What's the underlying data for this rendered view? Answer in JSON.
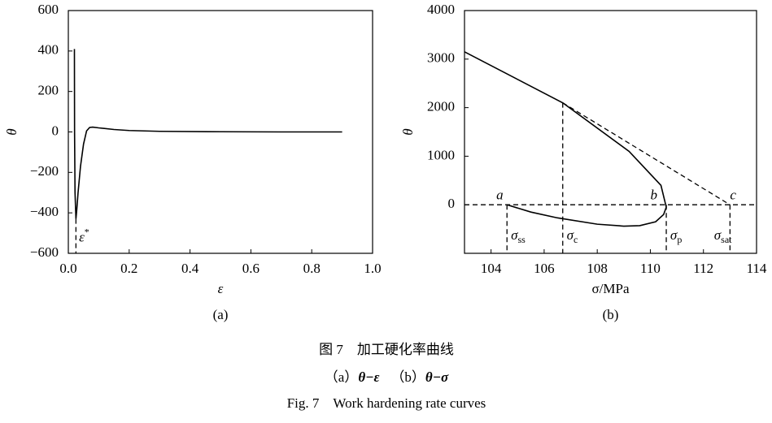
{
  "chart_data": [
    {
      "type": "line",
      "panel": "(a)",
      "x_label": "ε",
      "y_label": "θ",
      "xlim": [
        0,
        1
      ],
      "ylim": [
        -600,
        600
      ],
      "xticks": [
        {
          "value": 0,
          "label": "0.0"
        },
        {
          "value": 0.2,
          "label": "0.2"
        },
        {
          "value": 0.4,
          "label": "0.4"
        },
        {
          "value": 0.6,
          "label": "0.6"
        },
        {
          "value": 0.8,
          "label": "0.8"
        },
        {
          "value": 1,
          "label": "1.0"
        }
      ],
      "yticks": [
        {
          "value": -600,
          "label": "−600"
        },
        {
          "value": -400,
          "label": "−400"
        },
        {
          "value": -200,
          "label": "−200"
        },
        0,
        200,
        400,
        600
      ],
      "series": [
        {
          "color": "#000000",
          "x": [
            0.02,
            0.0205,
            0.022,
            0.025,
            0.028,
            0.032,
            0.04,
            0.05,
            0.06,
            0.07,
            0.08,
            0.1,
            0.15,
            0.2,
            0.3,
            0.5,
            0.7,
            0.9
          ],
          "values": [
            410,
            0,
            -300,
            -430,
            -380,
            -300,
            -170,
            -60,
            5,
            22,
            24,
            20,
            12,
            7,
            3,
            1,
            0,
            0
          ]
        }
      ],
      "guides": [
        {
          "x": [
            0.025,
            0.025
          ],
          "y": [
            -430,
            -600
          ]
        }
      ],
      "labels": [
        {
          "text": "ε",
          "sup": "*",
          "x": 0.035,
          "y": -525
        }
      ]
    },
    {
      "type": "line",
      "panel": "(b)",
      "x_label": "σ/MPa",
      "y_label": "θ",
      "xlim": [
        103,
        114
      ],
      "ylim": [
        -1000,
        4000
      ],
      "xticks": [
        104,
        106,
        108,
        110,
        112,
        114
      ],
      "yticks": [
        0,
        1000,
        2000,
        3000,
        4000
      ],
      "series": [
        {
          "color": "#000000",
          "x": [
            103,
            106.7,
            109.2,
            110.4,
            110.6,
            110.5,
            110.2,
            109.6,
            109,
            108,
            106.5,
            105.5,
            104.6
          ],
          "values": [
            3150,
            2100,
            1100,
            400,
            -50,
            -200,
            -350,
            -430,
            -440,
            -400,
            -270,
            -150,
            0
          ]
        }
      ],
      "guides": [
        {
          "x": [
            103,
            114
          ],
          "y": [
            0,
            0
          ]
        },
        {
          "x": [
            106.7,
            113
          ],
          "y": [
            2100,
            0
          ]
        },
        {
          "x": [
            104.6,
            104.6
          ],
          "y": [
            0,
            -1000
          ]
        },
        {
          "x": [
            106.7,
            106.7
          ],
          "y": [
            2100,
            -1000
          ]
        },
        {
          "x": [
            110.6,
            110.6
          ],
          "y": [
            0,
            -1000
          ]
        },
        {
          "x": [
            113,
            113
          ],
          "y": [
            0,
            -1000
          ]
        }
      ],
      "labels": [
        {
          "text": "a",
          "x": 104.2,
          "y": 180
        },
        {
          "text": "b",
          "x": 110.0,
          "y": 180
        },
        {
          "text": "c",
          "x": 113.0,
          "y": 180
        },
        {
          "text": "σ",
          "sub": "ss",
          "x": 104.75,
          "y": -650
        },
        {
          "text": "σ",
          "sub": "c",
          "x": 106.85,
          "y": -650
        },
        {
          "text": "σ",
          "sub": "p",
          "x": 110.75,
          "y": -650
        },
        {
          "text": "σ",
          "sub": "sat",
          "x": 112.4,
          "y": -650
        }
      ]
    }
  ],
  "caption": {
    "cn": "图 7　加工硬化率曲线",
    "sub_a": "（a）",
    "sub_a_eq": "θ−ε",
    "sub_b": "（b）",
    "sub_b_eq": "θ−σ",
    "en": "Fig. 7　Work hardening rate curves"
  }
}
